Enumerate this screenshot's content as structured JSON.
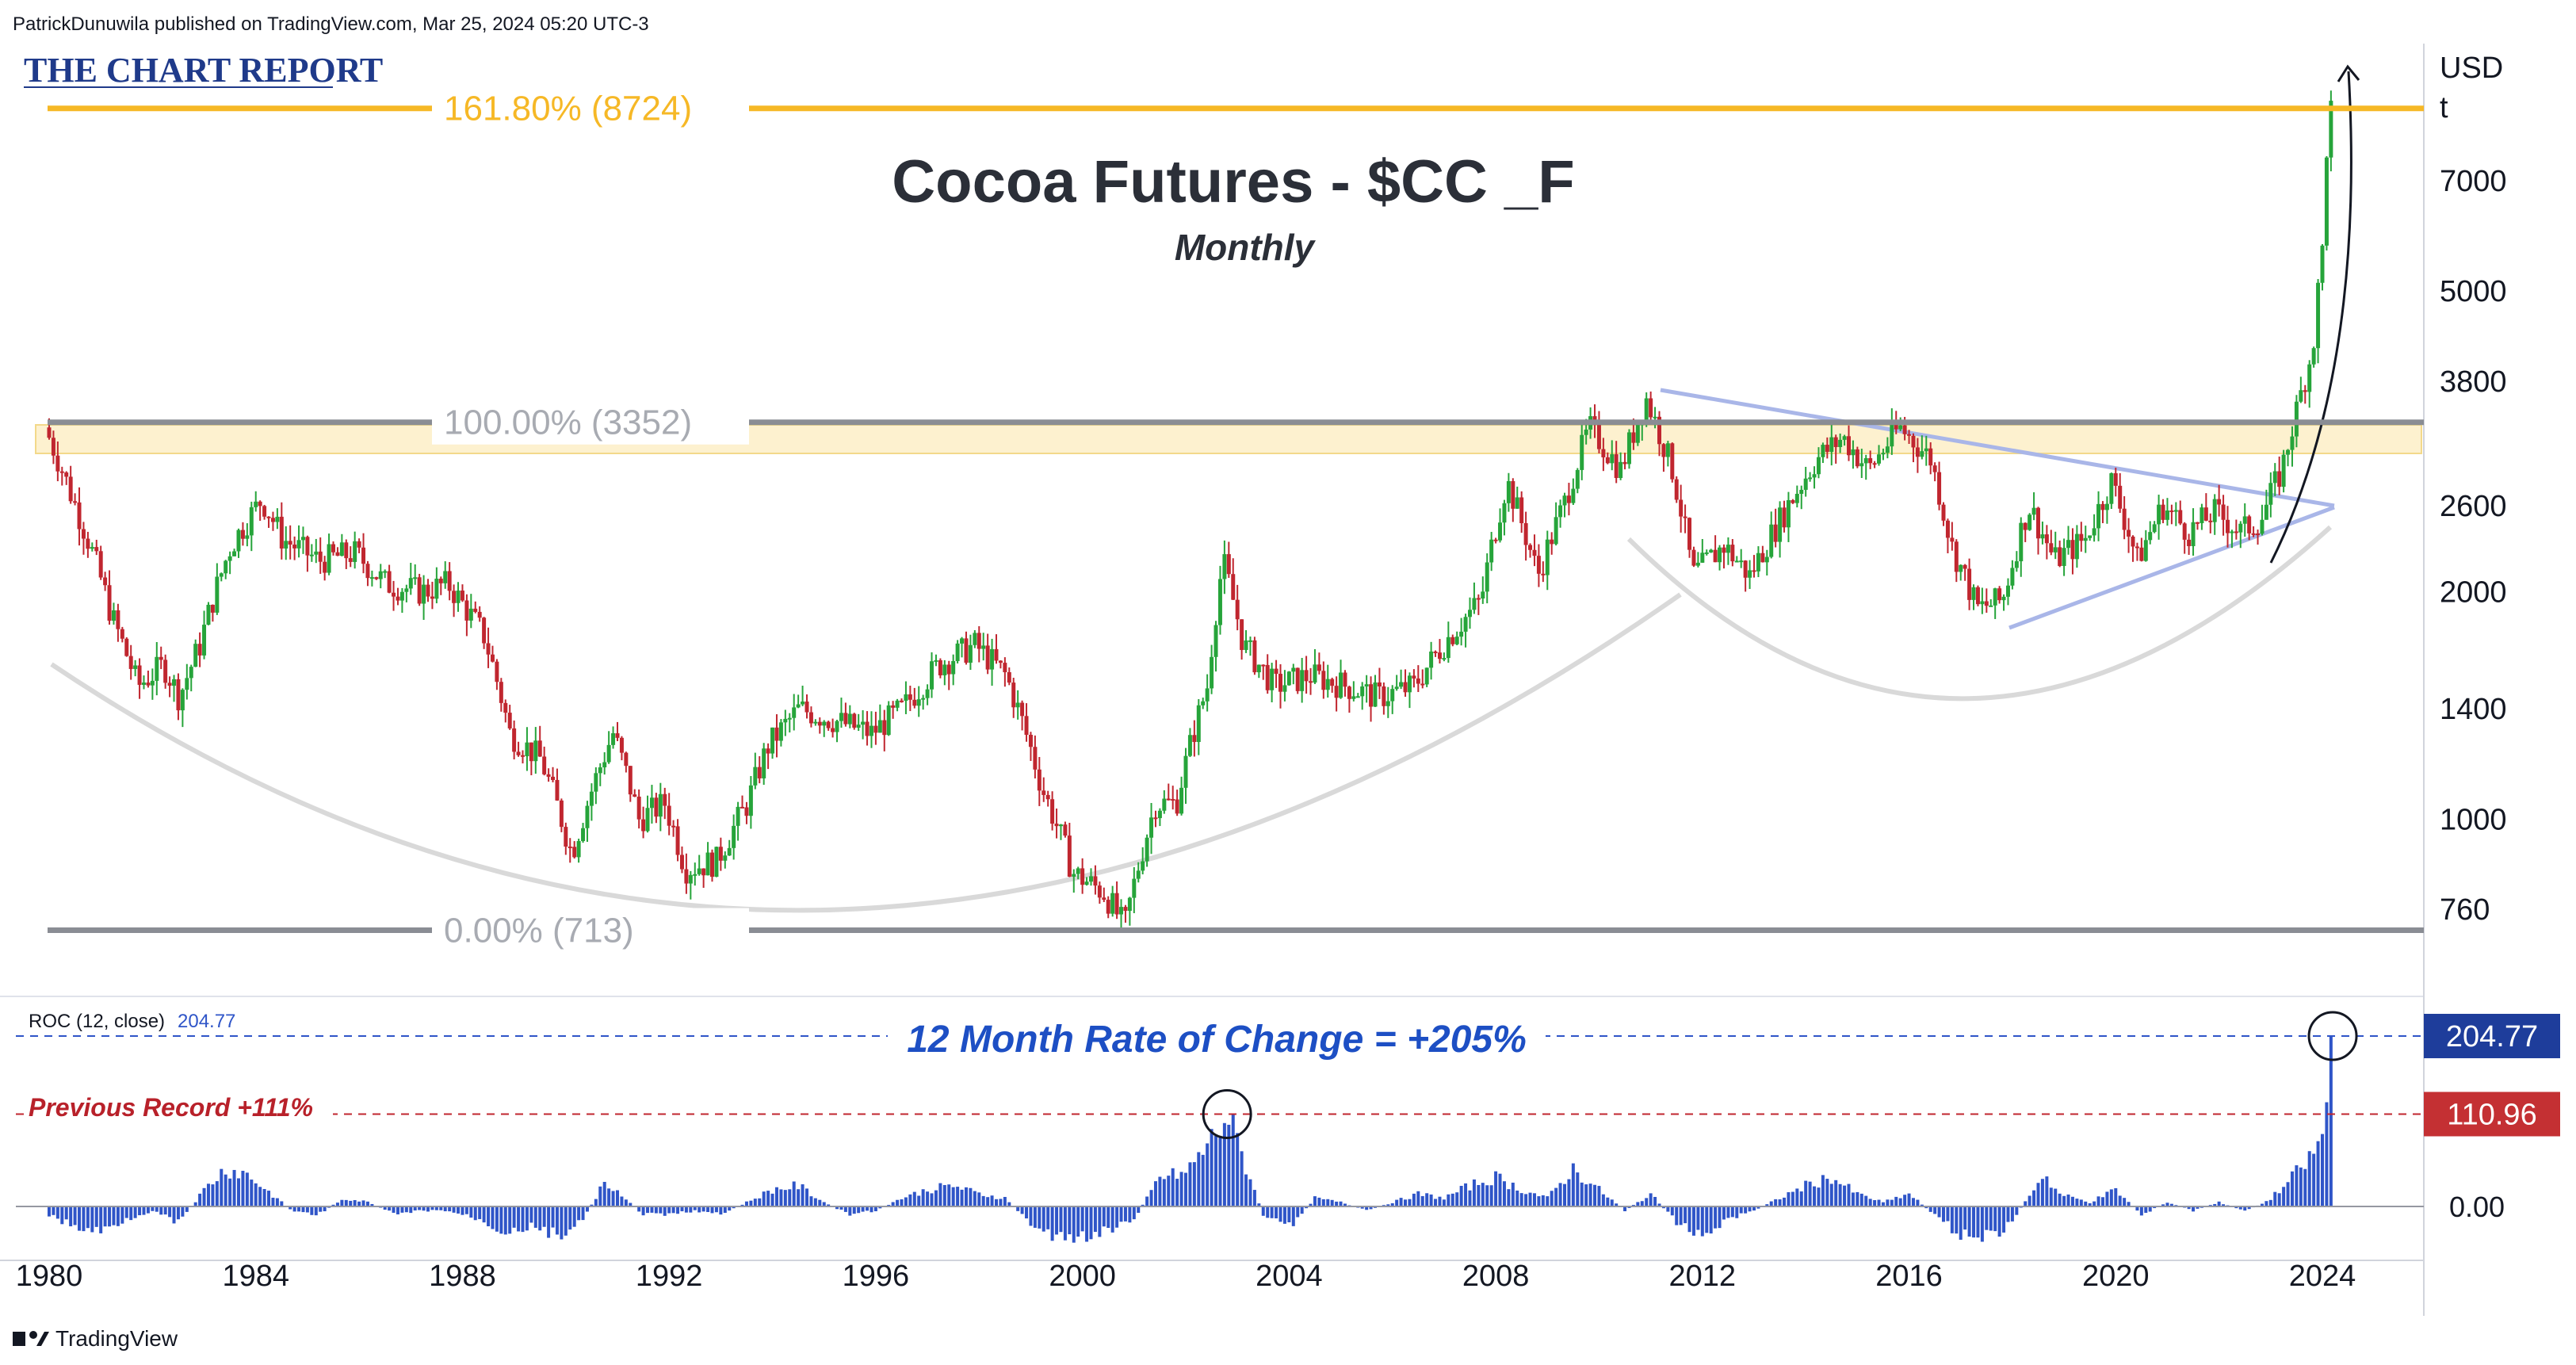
{
  "header": {
    "published_line": "PatrickDunuwila published on TradingView.com, Mar 25, 2024 05:20 UTC-3",
    "brand": "THE CHART REPORT",
    "footer_brand": "TradingView"
  },
  "colors": {
    "up": "#26a43a",
    "down": "#c0262f",
    "fib_618": "#f6b826",
    "fib_level": "#8a8d94",
    "roc_bar": "#2f55c8",
    "trendline": "#a9b6e8",
    "arc": "#d9d9d9",
    "badge_roc": "#1e3d9b",
    "badge_prev": "#c43033"
  },
  "chart_data": [
    {
      "type": "candlestick",
      "title": "Cocoa Futures - $CC _F",
      "subtitle": "Monthly",
      "currency_label": [
        "USD",
        "t"
      ],
      "y_scale": "log",
      "ylim": [
        600,
        10500
      ],
      "y_ticks": [
        760,
        1000,
        1400,
        2000,
        2600,
        3800,
        5000,
        7000
      ],
      "x_ticks": [
        1980,
        1984,
        1988,
        1992,
        1996,
        2000,
        2004,
        2008,
        2012,
        2016,
        2020,
        2024
      ],
      "xlim": [
        1979.9,
        2024.9
      ],
      "fib_levels": [
        {
          "label": "161.80% (8724)",
          "value": 8724
        },
        {
          "label": "100.00% (3352)",
          "value": 3352
        },
        {
          "label": "0.00% (713)",
          "value": 713
        }
      ],
      "price_path": [
        [
          1980.0,
          3300
        ],
        [
          1980.5,
          2700
        ],
        [
          1981.3,
          1850
        ],
        [
          1981.8,
          1500
        ],
        [
          1982.3,
          1600
        ],
        [
          1982.6,
          1450
        ],
        [
          1983.0,
          1700
        ],
        [
          1983.6,
          2300
        ],
        [
          1984.2,
          2650
        ],
        [
          1984.6,
          2350
        ],
        [
          1985.3,
          2200
        ],
        [
          1986.0,
          2250
        ],
        [
          1986.6,
          2050
        ],
        [
          1987.3,
          2000
        ],
        [
          1987.8,
          2050
        ],
        [
          1988.5,
          1750
        ],
        [
          1989.0,
          1300
        ],
        [
          1989.6,
          1200
        ],
        [
          1990.2,
          900
        ],
        [
          1990.6,
          1100
        ],
        [
          1991.0,
          1300
        ],
        [
          1991.5,
          1000
        ],
        [
          1992.0,
          1050
        ],
        [
          1992.4,
          860
        ],
        [
          1993.0,
          880
        ],
        [
          1993.6,
          1050
        ],
        [
          1994.0,
          1250
        ],
        [
          1994.6,
          1400
        ],
        [
          1995.3,
          1350
        ],
        [
          1996.0,
          1300
        ],
        [
          1996.6,
          1400
        ],
        [
          1997.3,
          1600
        ],
        [
          1998.0,
          1700
        ],
        [
          1998.6,
          1550
        ],
        [
          1999.3,
          1100
        ],
        [
          1999.9,
          850
        ],
        [
          2000.5,
          800
        ],
        [
          2000.9,
          720
        ],
        [
          2001.5,
          1050
        ],
        [
          2001.9,
          1050
        ],
        [
          2002.5,
          1500
        ],
        [
          2002.8,
          2200
        ],
        [
          2003.2,
          1700
        ],
        [
          2003.8,
          1500
        ],
        [
          2004.5,
          1550
        ],
        [
          2005.2,
          1500
        ],
        [
          2005.8,
          1450
        ],
        [
          2006.5,
          1500
        ],
        [
          2007.2,
          1750
        ],
        [
          2007.8,
          1950
        ],
        [
          2008.3,
          2800
        ],
        [
          2008.9,
          2100
        ],
        [
          2009.4,
          2600
        ],
        [
          2009.9,
          3300
        ],
        [
          2010.5,
          2900
        ],
        [
          2011.0,
          3600
        ],
        [
          2011.5,
          2900
        ],
        [
          2011.9,
          2100
        ],
        [
          2012.5,
          2300
        ],
        [
          2013.0,
          2100
        ],
        [
          2013.6,
          2500
        ],
        [
          2014.3,
          3000
        ],
        [
          2014.8,
          3200
        ],
        [
          2015.3,
          2900
        ],
        [
          2015.9,
          3300
        ],
        [
          2016.5,
          3000
        ],
        [
          2016.9,
          2300
        ],
        [
          2017.4,
          1900
        ],
        [
          2017.9,
          1950
        ],
        [
          2018.4,
          2600
        ],
        [
          2018.9,
          2200
        ],
        [
          2019.5,
          2350
        ],
        [
          2020.0,
          2800
        ],
        [
          2020.5,
          2200
        ],
        [
          2021.0,
          2600
        ],
        [
          2021.5,
          2400
        ],
        [
          2022.0,
          2550
        ],
        [
          2022.5,
          2400
        ],
        [
          2022.9,
          2500
        ],
        [
          2023.3,
          2900
        ],
        [
          2023.6,
          3500
        ],
        [
          2023.9,
          4200
        ],
        [
          2024.1,
          5800
        ],
        [
          2024.2,
          8700
        ]
      ],
      "annotations": [
        "curved base arcs",
        "triangle consolidation",
        "parabolic arrow"
      ]
    },
    {
      "type": "bar",
      "title": "ROC (12, close)",
      "last_value": "204.77",
      "headline": "12 Month Rate of Change = +205%",
      "previous_record_label": "Previous Record +111%",
      "ylim": [
        -60,
        240
      ],
      "y_ticks": [
        0
      ],
      "y_tick_labels": [
        "0.00"
      ],
      "badges": [
        {
          "label": "204.77",
          "value": 204.77
        },
        {
          "label": "110.96",
          "value": 110.96
        }
      ],
      "roc_path": [
        [
          1980.0,
          -10
        ],
        [
          1980.5,
          -25
        ],
        [
          1981.0,
          -30
        ],
        [
          1981.5,
          -15
        ],
        [
          1982.0,
          -5
        ],
        [
          1982.5,
          -20
        ],
        [
          1983.0,
          20
        ],
        [
          1983.4,
          45
        ],
        [
          1983.8,
          40
        ],
        [
          1984.2,
          20
        ],
        [
          1984.7,
          -5
        ],
        [
          1985.2,
          -10
        ],
        [
          1985.7,
          10
        ],
        [
          1986.2,
          5
        ],
        [
          1986.7,
          -10
        ],
        [
          1987.2,
          -5
        ],
        [
          1987.7,
          -5
        ],
        [
          1988.3,
          -15
        ],
        [
          1988.8,
          -30
        ],
        [
          1989.3,
          -25
        ],
        [
          1989.9,
          -35
        ],
        [
          1990.3,
          -20
        ],
        [
          1990.7,
          25
        ],
        [
          1991.0,
          20
        ],
        [
          1991.5,
          -10
        ],
        [
          1992.0,
          -10
        ],
        [
          1992.5,
          -5
        ],
        [
          1993.0,
          -10
        ],
        [
          1993.5,
          5
        ],
        [
          1994.0,
          20
        ],
        [
          1994.5,
          25
        ],
        [
          1995.0,
          5
        ],
        [
          1995.5,
          -10
        ],
        [
          1996.0,
          -5
        ],
        [
          1996.5,
          10
        ],
        [
          1997.0,
          20
        ],
        [
          1997.5,
          25
        ],
        [
          1998.0,
          15
        ],
        [
          1998.5,
          10
        ],
        [
          1999.0,
          -20
        ],
        [
          1999.5,
          -40
        ],
        [
          2000.0,
          -35
        ],
        [
          2000.5,
          -30
        ],
        [
          2001.0,
          -15
        ],
        [
          2001.5,
          35
        ],
        [
          2002.0,
          40
        ],
        [
          2002.5,
          80
        ],
        [
          2002.8,
          111
        ],
        [
          2003.1,
          60
        ],
        [
          2003.5,
          -10
        ],
        [
          2004.0,
          -25
        ],
        [
          2004.5,
          10
        ],
        [
          2005.0,
          5
        ],
        [
          2005.5,
          -5
        ],
        [
          2006.0,
          5
        ],
        [
          2006.5,
          15
        ],
        [
          2007.0,
          10
        ],
        [
          2007.5,
          25
        ],
        [
          2008.0,
          35
        ],
        [
          2008.5,
          20
        ],
        [
          2009.0,
          10
        ],
        [
          2009.5,
          45
        ],
        [
          2010.0,
          20
        ],
        [
          2010.5,
          -5
        ],
        [
          2011.0,
          15
        ],
        [
          2011.5,
          -20
        ],
        [
          2012.0,
          -35
        ],
        [
          2012.5,
          -15
        ],
        [
          2013.0,
          -5
        ],
        [
          2013.5,
          10
        ],
        [
          2014.0,
          25
        ],
        [
          2014.5,
          35
        ],
        [
          2015.0,
          15
        ],
        [
          2015.5,
          5
        ],
        [
          2016.0,
          15
        ],
        [
          2016.5,
          -10
        ],
        [
          2016.9,
          -30
        ],
        [
          2017.4,
          -40
        ],
        [
          2017.9,
          -25
        ],
        [
          2018.3,
          10
        ],
        [
          2018.6,
          40
        ],
        [
          2018.9,
          15
        ],
        [
          2019.5,
          5
        ],
        [
          2020.0,
          20
        ],
        [
          2020.5,
          -10
        ],
        [
          2021.0,
          5
        ],
        [
          2021.5,
          -5
        ],
        [
          2022.0,
          5
        ],
        [
          2022.5,
          -5
        ],
        [
          2022.9,
          5
        ],
        [
          2023.2,
          20
        ],
        [
          2023.5,
          40
        ],
        [
          2023.8,
          60
        ],
        [
          2024.0,
          85
        ],
        [
          2024.1,
          120
        ],
        [
          2024.2,
          205
        ]
      ]
    }
  ]
}
